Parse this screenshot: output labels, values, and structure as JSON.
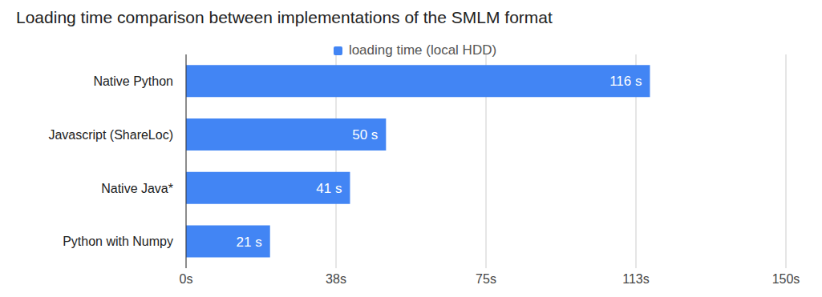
{
  "chart_data": {
    "type": "bar",
    "title": "Loading time comparison between implementations of the SMLM format",
    "orientation": "horizontal",
    "categories": [
      "Native Python",
      "Javascript (ShareLoc)",
      "Native Java*",
      "Python with Numpy"
    ],
    "series": [
      {
        "name": "loading time (local HDD)",
        "color": "#4285f4",
        "values": [
          116,
          50,
          41,
          21
        ],
        "value_labels": [
          "116 s",
          "50 s",
          "41 s",
          "21 s"
        ]
      }
    ],
    "xlim": [
      0,
      150
    ],
    "xticks": [
      {
        "value": 0,
        "label": "0s"
      },
      {
        "value": 37.5,
        "label": "38s"
      },
      {
        "value": 75,
        "label": "75s"
      },
      {
        "value": 112.5,
        "label": "113s"
      },
      {
        "value": 150,
        "label": "150s"
      }
    ],
    "grid": true,
    "legend": "top",
    "data_labels": true
  }
}
